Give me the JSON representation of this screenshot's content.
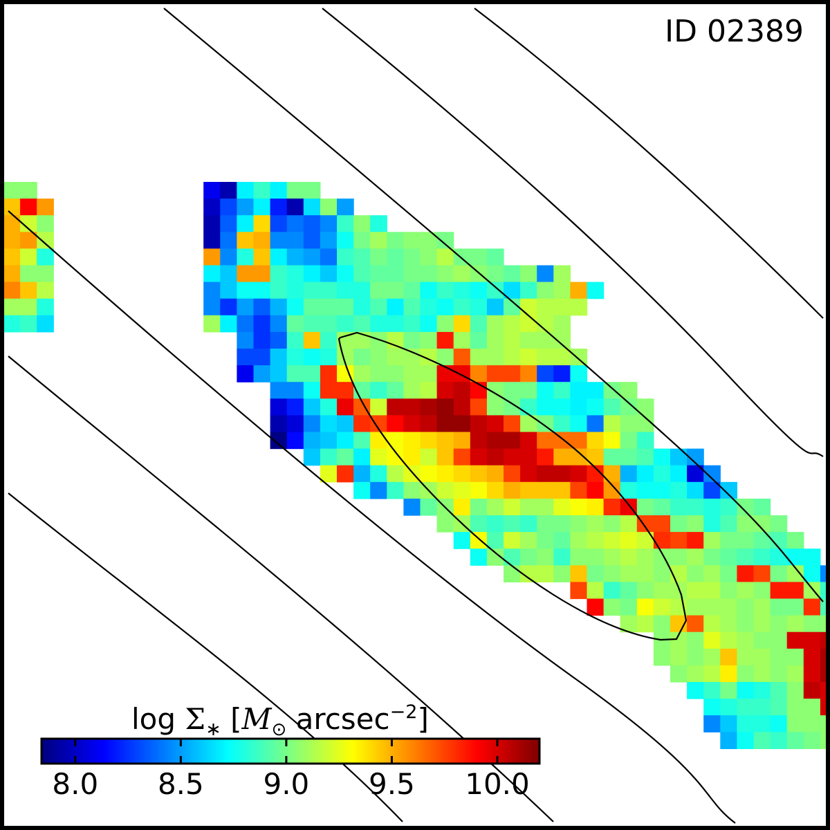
{
  "figure": {
    "id_label": "ID 02389"
  },
  "colorbar": {
    "label": "log Σ∗ [M⊙ arcsec⁻²]",
    "label_parts": {
      "prefix": "log ",
      "sigma": "Σ",
      "star": "∗",
      "open": " [",
      "m": "M",
      "sun": "⊙",
      "unit": " arcsec",
      "exp": "−2",
      "close": "]"
    },
    "colormap": "jet",
    "ticks": [
      {
        "value": 8.0,
        "label": "8.0"
      },
      {
        "value": 8.5,
        "label": "8.5"
      },
      {
        "value": 9.0,
        "label": "9.0"
      },
      {
        "value": 9.5,
        "label": "9.5"
      },
      {
        "value": 10.0,
        "label": "10.0"
      }
    ]
  },
  "chart_data": {
    "type": "heatmap",
    "title": "ID 02389",
    "colorbar_label": "log Σ∗ [M⊙ arcsec⁻²]",
    "vlim": [
      7.84,
      10.2
    ],
    "x_axis": false,
    "y_axis": false,
    "grid": false,
    "rows": [
      {
        "row": 0,
        "col": 0,
        "values": [
          9.05,
          9.05
        ]
      },
      {
        "row": 0,
        "col": 12,
        "values": [
          8.1,
          7.95,
          8.7,
          8.85,
          8.7,
          9.0,
          9.0
        ]
      },
      {
        "row": 1,
        "col": 0,
        "values": [
          9.45,
          9.9,
          9.55
        ]
      },
      {
        "row": 1,
        "col": 12,
        "values": [
          8.0,
          8.3,
          8.5,
          8.7,
          8.2,
          7.95,
          8.65,
          9.05,
          8.5
        ]
      },
      {
        "row": 2,
        "col": 0,
        "values": [
          9.5,
          9.2,
          9.05
        ]
      },
      {
        "row": 2,
        "col": 12,
        "values": [
          7.95,
          8.35,
          8.7,
          9.4,
          8.3,
          8.4,
          8.35,
          8.45,
          8.85,
          9.05,
          8.8
        ]
      },
      {
        "row": 3,
        "col": 0,
        "values": [
          9.5,
          9.55,
          9.15
        ]
      },
      {
        "row": 3,
        "col": 12,
        "values": [
          7.95,
          8.4,
          9.45,
          9.5,
          8.45,
          8.45,
          8.35,
          8.5,
          8.75,
          9.0,
          9.1,
          9.0,
          9.05,
          9.05,
          9.0
        ]
      },
      {
        "row": 4,
        "col": 0,
        "values": [
          9.45,
          9.2,
          8.8
        ]
      },
      {
        "row": 4,
        "col": 12,
        "values": [
          9.55,
          8.45,
          8.8,
          9.45,
          8.7,
          8.55,
          8.5,
          8.4,
          8.85,
          8.9,
          9.0,
          8.95,
          9.0,
          9.05,
          9.15,
          9.0,
          9.0,
          8.95
        ]
      },
      {
        "row": 5,
        "col": 0,
        "values": [
          9.5,
          9.05,
          9.05
        ]
      },
      {
        "row": 5,
        "col": 12,
        "values": [
          8.7,
          8.6,
          9.55,
          9.55,
          8.85,
          8.8,
          8.7,
          8.6,
          8.75,
          8.9,
          8.95,
          8.95,
          9.0,
          9.0,
          9.05,
          9.1,
          9.05,
          9.0,
          8.95,
          9.05,
          8.45,
          9.1
        ]
      },
      {
        "row": 6,
        "col": 0,
        "values": [
          9.6,
          9.45,
          9.15
        ]
      },
      {
        "row": 6,
        "col": 12,
        "values": [
          8.45,
          8.6,
          8.75,
          8.75,
          8.85,
          8.8,
          8.85,
          8.85,
          8.8,
          8.8,
          9.0,
          9.0,
          8.95,
          8.75,
          8.85,
          8.8,
          8.75,
          8.85,
          8.65,
          8.85,
          9.05,
          9.1,
          9.5,
          8.75
        ]
      },
      {
        "row": 7,
        "col": 0,
        "values": [
          9.1,
          9.1,
          8.8
        ]
      },
      {
        "row": 7,
        "col": 12,
        "values": [
          8.45,
          8.25,
          8.5,
          8.35,
          8.55,
          8.75,
          8.95,
          8.95,
          8.95,
          8.8,
          8.9,
          8.7,
          8.9,
          8.8,
          8.75,
          8.85,
          8.8,
          8.6,
          8.95,
          9.2,
          9.15,
          9.15,
          9.15
        ]
      },
      {
        "row": 8,
        "col": 0,
        "values": [
          8.8,
          8.85,
          8.65
        ]
      },
      {
        "row": 8,
        "col": 12,
        "values": [
          9.1,
          8.7,
          8.4,
          8.25,
          8.45,
          8.95,
          8.9,
          8.9,
          8.85,
          8.9,
          8.8,
          8.8,
          8.85,
          8.75,
          9.05,
          9.4,
          8.9,
          9.1,
          9.15,
          9.2,
          9.15,
          9.1
        ]
      },
      {
        "row": 9,
        "col": 14,
        "values": [
          8.45,
          8.25,
          8.35,
          8.85,
          9.45,
          8.85,
          9.1,
          9.1,
          9.05,
          9.15,
          9.0,
          9.05,
          9.85,
          9.1,
          8.95,
          9.1,
          9.15,
          9.1,
          9.1,
          9.1
        ]
      },
      {
        "row": 10,
        "col": 14,
        "values": [
          8.3,
          8.3,
          8.6,
          8.8,
          8.75,
          8.8,
          9.1,
          9.0,
          9.05,
          9.1,
          9.1,
          9.15,
          9.05,
          9.7,
          9.1,
          9.1,
          9.15,
          9.2,
          9.15,
          9.15,
          9.1
        ]
      },
      {
        "row": 11,
        "col": 14,
        "values": [
          8.1,
          8.5,
          8.6,
          8.9,
          8.9,
          9.8,
          9.3,
          9.1,
          9.05,
          9.05,
          9.1,
          9.1,
          9.95,
          9.95,
          9.6,
          9.75,
          9.75,
          9.6,
          8.3,
          8.2,
          8.75
        ]
      },
      {
        "row": 12,
        "col": 16,
        "values": [
          8.45,
          8.45,
          8.75,
          9.8,
          9.8,
          8.95,
          8.85,
          8.95,
          9.1,
          9.15,
          10.0,
          10.05,
          9.9,
          9.05,
          9.0,
          9.0,
          8.75,
          8.85,
          8.7,
          8.7,
          9.0,
          9.05
        ]
      },
      {
        "row": 13,
        "col": 16,
        "values": [
          8.05,
          8.2,
          8.6,
          8.8,
          9.95,
          9.7,
          9.2,
          10.05,
          10.05,
          10.1,
          10.15,
          10.05,
          9.75,
          9.05,
          9.0,
          8.85,
          8.75,
          8.75,
          8.7,
          8.75,
          8.9,
          9.0,
          9.05
        ]
      },
      {
        "row": 14,
        "col": 16,
        "values": [
          7.95,
          8.05,
          8.45,
          8.65,
          8.6,
          9.8,
          9.75,
          9.9,
          10.0,
          10.05,
          10.15,
          10.15,
          10.05,
          10.0,
          9.75,
          9.1,
          9.0,
          8.85,
          8.75,
          8.4,
          9.15,
          9.05,
          9.05
        ]
      },
      {
        "row": 15,
        "col": 16,
        "values": [
          7.85,
          8.15,
          8.55,
          8.6,
          8.7,
          8.9,
          9.35,
          9.3,
          9.35,
          9.4,
          9.45,
          9.5,
          10.05,
          10.1,
          10.1,
          10.0,
          9.65,
          9.65,
          9.65,
          9.4,
          9.3,
          9.0,
          8.85
        ]
      },
      {
        "row": 16,
        "col": 18,
        "values": [
          8.6,
          8.85,
          8.95,
          8.7,
          9.25,
          9.3,
          9.35,
          9.2,
          9.45,
          9.75,
          10.0,
          10.05,
          10.0,
          10.0,
          9.85,
          9.5,
          9.5,
          9.45,
          8.95,
          8.95,
          8.9,
          8.75,
          8.6,
          8.5
        ]
      },
      {
        "row": 17,
        "col": 19,
        "values": [
          9.25,
          9.8,
          8.55,
          8.8,
          9.15,
          9.25,
          9.3,
          9.35,
          9.4,
          9.45,
          9.5,
          9.75,
          10.0,
          10.05,
          10.05,
          10.0,
          9.85,
          9.5,
          8.55,
          8.7,
          8.8,
          8.7,
          8.05,
          8.45
        ]
      },
      {
        "row": 18,
        "col": 21,
        "values": [
          8.75,
          8.45,
          8.85,
          9.05,
          9.1,
          9.2,
          9.25,
          9.3,
          9.4,
          9.5,
          9.45,
          9.45,
          9.45,
          9.75,
          9.9,
          9.55,
          8.8,
          8.75,
          8.75,
          8.8,
          8.65,
          8.3,
          8.6
        ]
      },
      {
        "row": 19,
        "col": 24,
        "values": [
          8.45,
          8.95,
          9.05,
          9.35,
          9.0,
          9.1,
          9.2,
          9.1,
          9.1,
          9.25,
          9.3,
          9.35,
          9.8,
          9.95,
          9.0,
          8.95,
          8.85,
          8.85,
          8.8,
          8.85,
          9.0,
          8.95
        ]
      },
      {
        "row": 20,
        "col": 26,
        "values": [
          9.05,
          9.1,
          8.9,
          8.85,
          8.9,
          8.85,
          9.0,
          9.0,
          9.05,
          9.1,
          9.05,
          9.15,
          9.75,
          9.75,
          9.0,
          9.05,
          8.8,
          8.9,
          9.05,
          9.05,
          9.0
        ]
      },
      {
        "row": 21,
        "col": 27,
        "values": [
          8.75,
          9.3,
          8.9,
          9.2,
          9.1,
          9.0,
          8.95,
          9.1,
          9.15,
          9.2,
          9.25,
          9.2,
          9.8,
          9.75,
          9.85,
          9.1,
          9.0,
          9.0,
          8.95,
          8.9,
          9.0
        ]
      },
      {
        "row": 22,
        "col": 28,
        "values": [
          8.75,
          9.05,
          8.9,
          9.0,
          9.05,
          8.85,
          9.05,
          9.05,
          9.1,
          9.15,
          9.1,
          9.05,
          9.05,
          9.1,
          9.0,
          8.95,
          8.9,
          8.85,
          8.8,
          8.75,
          8.75
        ]
      },
      {
        "row": 23,
        "col": 30,
        "values": [
          9.05,
          9.15,
          9.15,
          9.05,
          9.45,
          9.0,
          9.05,
          9.1,
          9.1,
          9.05,
          9.15,
          9.05,
          9.1,
          9.0,
          9.85,
          9.75,
          9.0,
          9.1,
          8.75,
          8.45,
          8.85,
          9.05
        ]
      },
      {
        "row": 24,
        "col": 34,
        "values": [
          9.75,
          9.15,
          8.85,
          8.95,
          9.05,
          9.1,
          9.1,
          9.15,
          9.15,
          9.05,
          9.1,
          9.05,
          9.85,
          9.85,
          9.1,
          8.85,
          8.65,
          8.7,
          8.85,
          8.9,
          9.05
        ]
      },
      {
        "row": 25,
        "col": 35,
        "values": [
          9.9,
          9.05,
          9.0,
          9.3,
          9.2,
          9.15,
          9.1,
          9.1,
          9.1,
          9.05,
          9.1,
          9.0,
          9.0,
          9.8,
          8.9,
          8.85,
          8.7,
          8.55,
          8.5
        ]
      },
      {
        "row": 26,
        "col": 37,
        "values": [
          9.1,
          9.15,
          9.05,
          9.45,
          9.7,
          9.15,
          9.1,
          9.05,
          9.1,
          9.05,
          9.1,
          9.05,
          9.05,
          8.95,
          8.9,
          8.8,
          8.85
        ]
      },
      {
        "row": 27,
        "col": 39,
        "values": [
          9.05,
          9.1,
          9.05,
          9.25,
          9.15,
          9.1,
          9.05,
          9.05,
          10.0,
          10.0,
          10.05,
          10.05
        ]
      },
      {
        "row": 28,
        "col": 39,
        "values": [
          9.05,
          9.1,
          9.05,
          9.1,
          9.45,
          9.1,
          9.1,
          9.05,
          9.05,
          10.0,
          10.1,
          10.15,
          10.15
        ]
      },
      {
        "row": 29,
        "col": 40,
        "values": [
          9.05,
          9.1,
          9.15,
          9.35,
          9.05,
          9.1,
          9.05,
          9.1,
          10.0,
          10.1,
          10.05,
          10.05
        ]
      },
      {
        "row": 30,
        "col": 41,
        "values": [
          8.75,
          8.85,
          9.0,
          8.75,
          8.8,
          8.9,
          9.05,
          10.05,
          10.0,
          10.0
        ]
      },
      {
        "row": 31,
        "col": 42,
        "values": [
          8.75,
          8.8,
          8.85,
          8.85,
          8.9,
          9.05,
          9.05,
          10.0,
          9.9,
          9.95
        ]
      },
      {
        "row": 32,
        "col": 42,
        "values": [
          8.45,
          8.6,
          8.8,
          8.8,
          8.75,
          9.05,
          9.05,
          9.05,
          10.05,
          9.95,
          9.0
        ]
      },
      {
        "row": 33,
        "col": 43,
        "values": [
          8.55,
          8.75,
          8.9,
          8.85,
          8.95,
          9.0,
          9.05,
          9.05,
          9.0,
          9.0
        ]
      }
    ],
    "contours": [
      "outer-diagonal-isophotes",
      "inner-ellipse"
    ]
  }
}
